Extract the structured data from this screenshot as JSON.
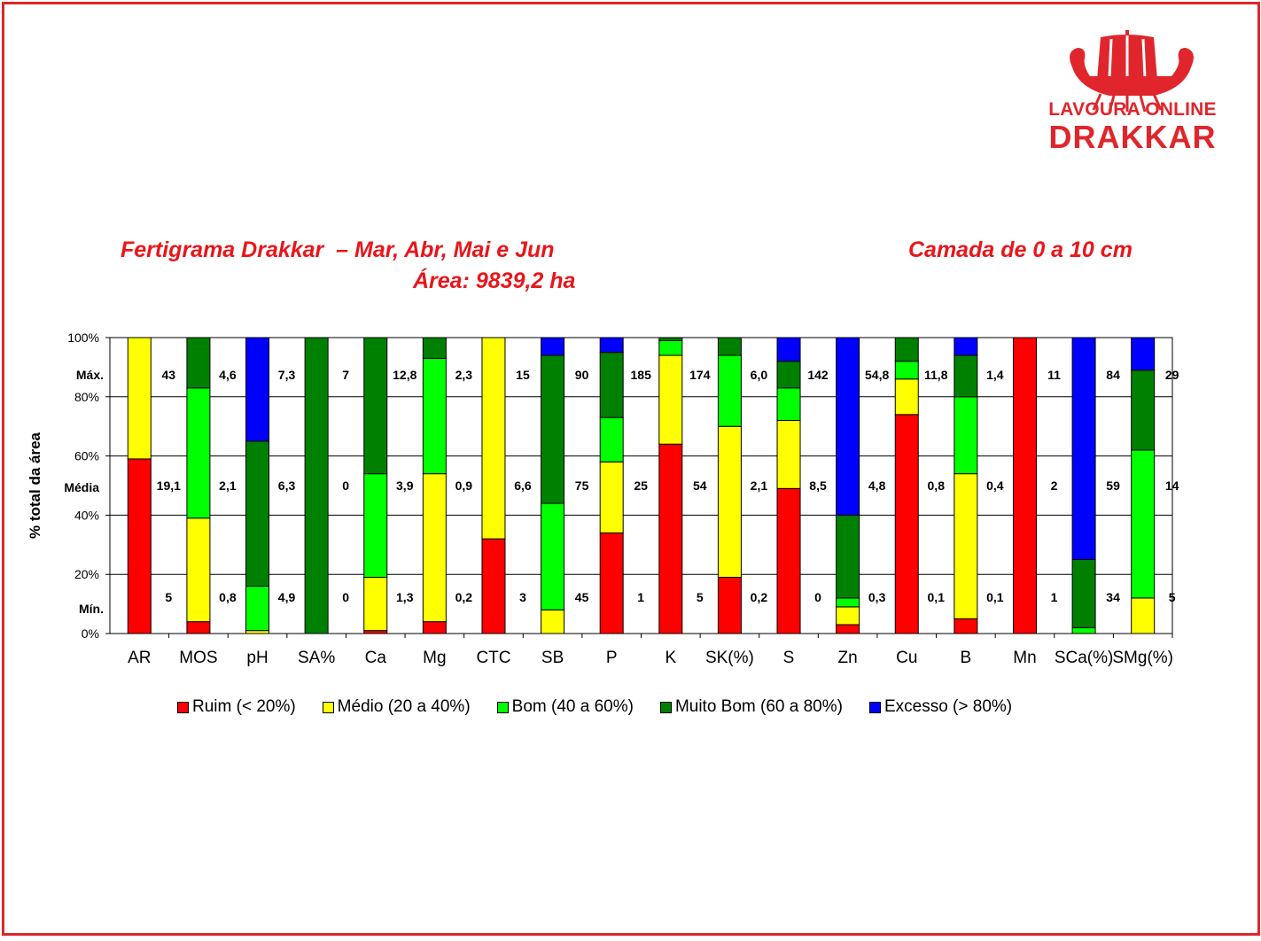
{
  "colors": {
    "accent": "#e0262c",
    "title": "#e8161b",
    "ruim": "#ff0000",
    "medio": "#ffff00",
    "bom": "#00ff00",
    "muito_bom": "#008000",
    "excesso": "#0000ff"
  },
  "logo": {
    "icon": "viking-ship-icon",
    "line1": "LAVOURA ONLINE",
    "line2": "DRAKKAR"
  },
  "header": {
    "title_line1": "Fertigrama Drakkar  – Mar, Abr, Mai e Jun",
    "title_line2": "Área: 9839,2 ha",
    "layer": "Camada de 0 a 10 cm"
  },
  "chart_data": {
    "type": "bar",
    "stacked": true,
    "categories": [
      "AR",
      "MOS",
      "pH",
      "SA%",
      "Ca",
      "Mg",
      "CTC",
      "SB",
      "P",
      "K",
      "SK(%)",
      "S",
      "Zn",
      "Cu",
      "B",
      "Mn",
      "SCa(%)",
      "SMg(%)"
    ],
    "series": [
      {
        "name": "Ruim (< 20%)",
        "color": "#ff0000",
        "values": [
          59,
          4,
          0,
          0,
          1,
          4,
          32,
          0,
          34,
          64,
          19,
          49,
          3,
          74,
          5,
          100,
          0,
          0
        ]
      },
      {
        "name": "Médio (20 a 40%)",
        "color": "#ffff00",
        "values": [
          41,
          35,
          1,
          0,
          18,
          50,
          68,
          8,
          24,
          30,
          51,
          23,
          6,
          12,
          49,
          0,
          0,
          12
        ]
      },
      {
        "name": "Bom (40 a 60%)",
        "color": "#00ff00",
        "values": [
          0,
          44,
          15,
          0,
          35,
          39,
          0,
          36,
          15,
          5,
          24,
          11,
          3,
          6,
          26,
          0,
          2,
          50
        ]
      },
      {
        "name": "Muito Bom (60 a 80%)",
        "color": "#008000",
        "values": [
          0,
          17,
          49,
          100,
          46,
          7,
          0,
          50,
          22,
          1,
          6,
          9,
          28,
          8,
          14,
          0,
          23,
          27
        ]
      },
      {
        "name": "Excesso (> 80%)",
        "color": "#0000ff",
        "values": [
          0,
          0,
          35,
          0,
          0,
          0,
          0,
          6,
          5,
          0,
          0,
          8,
          60,
          0,
          6,
          0,
          75,
          11
        ]
      }
    ],
    "row_labels": {
      "max": "Máx.",
      "mean": "Média",
      "min": "Mín."
    },
    "max_values": [
      "43",
      "4,6",
      "7,3",
      "7",
      "12,8",
      "2,3",
      "15",
      "90",
      "185",
      "174",
      "6,0",
      "142",
      "54,8",
      "11,8",
      "1,4",
      "11",
      "84",
      "29"
    ],
    "mean_values": [
      "19,1",
      "2,1",
      "6,3",
      "0",
      "3,9",
      "0,9",
      "6,6",
      "75",
      "25",
      "54",
      "2,1",
      "8,5",
      "4,8",
      "0,8",
      "0,4",
      "2",
      "59",
      "14"
    ],
    "min_values": [
      "5",
      "0,8",
      "4,9",
      "0",
      "1,3",
      "0,2",
      "3",
      "45",
      "1",
      "5",
      "0,2",
      "0",
      "0,3",
      "0,1",
      "0,1",
      "1",
      "34",
      "5"
    ],
    "ylabel": "% total da área",
    "yticks": [
      "0%",
      "20%",
      "40%",
      "60%",
      "80%",
      "100%"
    ],
    "ylim": [
      0,
      100
    ],
    "grid": true,
    "legend_position": "bottom"
  }
}
